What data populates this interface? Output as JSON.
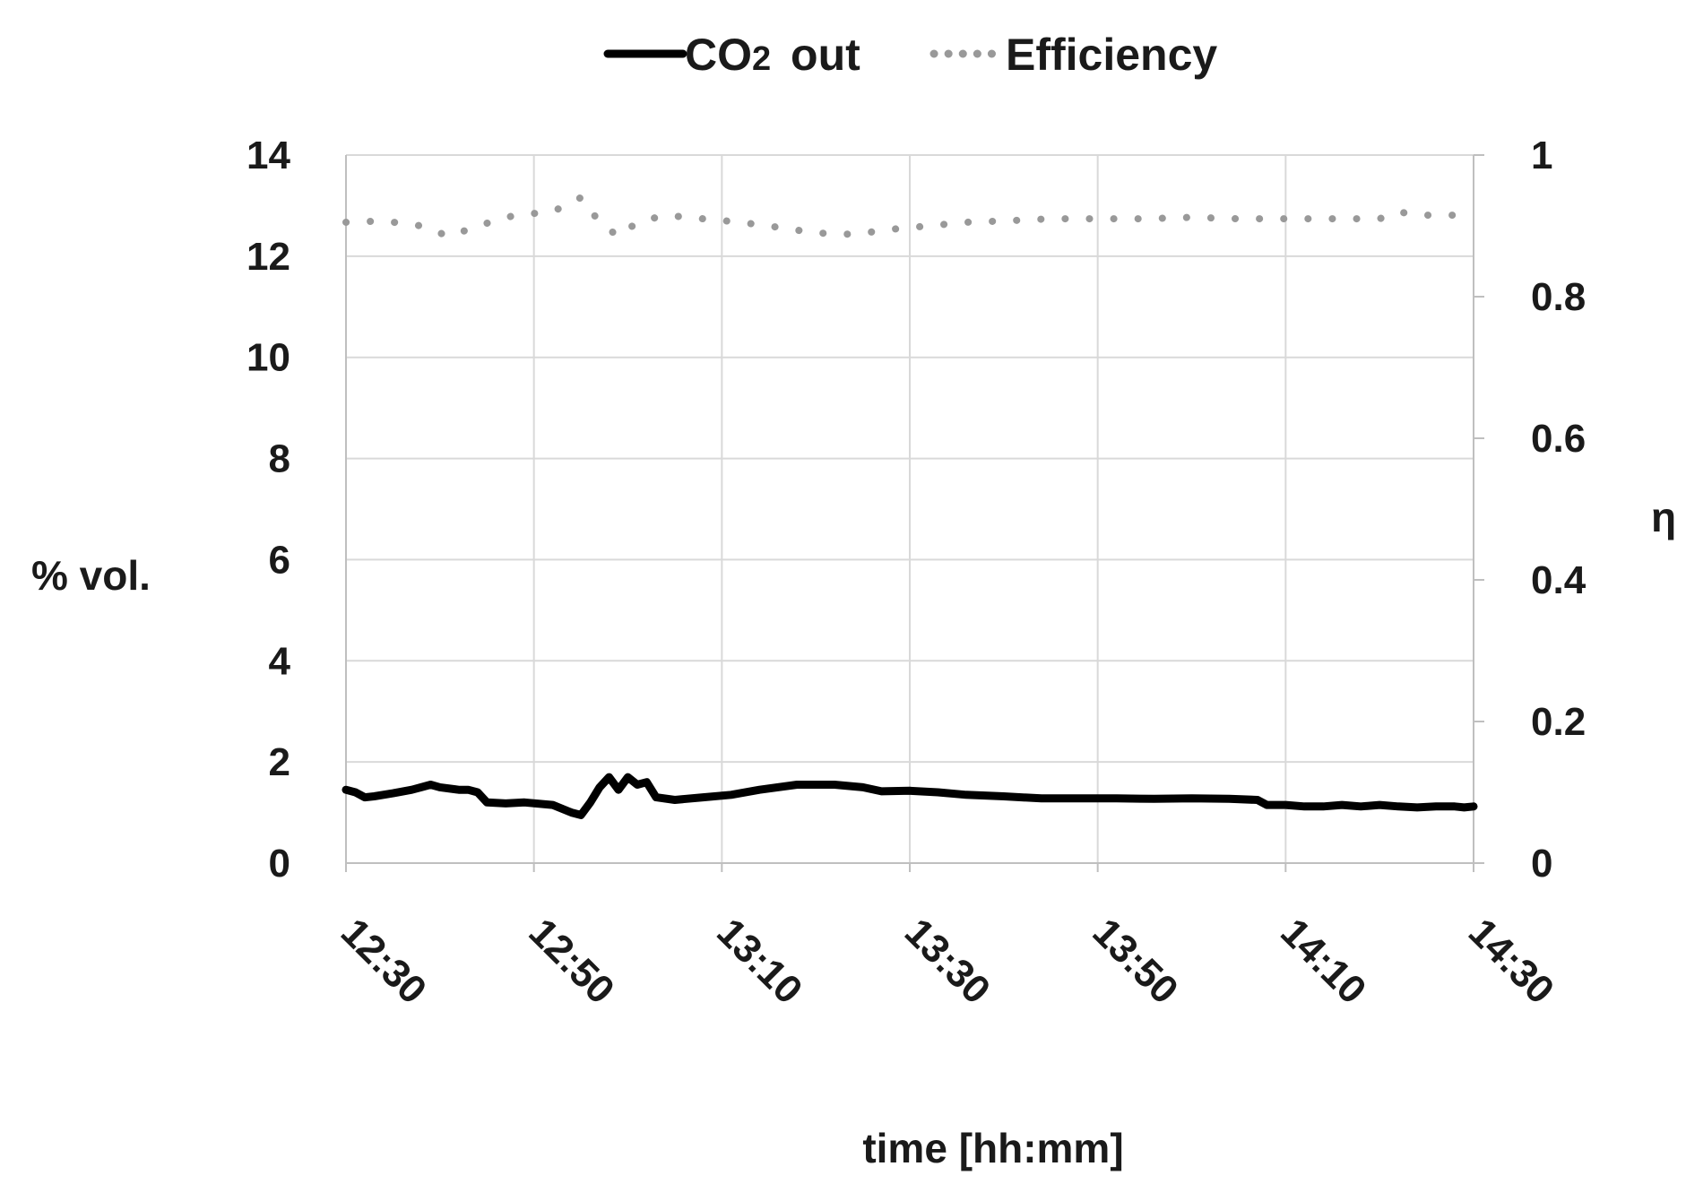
{
  "chart_data": {
    "type": "line",
    "x_labels": [
      "12:30",
      "12:50",
      "13:10",
      "13:30",
      "13:50",
      "14:10",
      "14:30"
    ],
    "xlabel": "time [hh:mm]",
    "ylabel_left": "% vol.",
    "ylabel_right": "η",
    "ylim_left": [
      0,
      14
    ],
    "yticks_left": [
      "0",
      "2",
      "4",
      "6",
      "8",
      "10",
      "12",
      "14"
    ],
    "ylim_right": [
      0,
      1
    ],
    "yticks_right": [
      "0",
      "0.2",
      "0.4",
      "0.6",
      "0.8",
      "1"
    ],
    "grid": true,
    "legend_position": "top-center",
    "legend": {
      "co2_prefix": "CO",
      "co2_sub": "2",
      "co2_suffix": " out",
      "efficiency": "Efficiency"
    },
    "series": [
      {
        "name": "CO2 out",
        "axis": "left",
        "style": "solid",
        "color": "#000000",
        "points": [
          [
            0,
            1.45
          ],
          [
            1,
            1.4
          ],
          [
            2,
            1.3
          ],
          [
            3,
            1.32
          ],
          [
            5,
            1.38
          ],
          [
            7,
            1.45
          ],
          [
            8,
            1.5
          ],
          [
            9,
            1.55
          ],
          [
            10,
            1.5
          ],
          [
            12,
            1.45
          ],
          [
            13,
            1.45
          ],
          [
            14,
            1.4
          ],
          [
            15,
            1.2
          ],
          [
            17,
            1.18
          ],
          [
            19,
            1.2
          ],
          [
            22,
            1.15
          ],
          [
            24,
            1.0
          ],
          [
            25,
            0.95
          ],
          [
            26,
            1.2
          ],
          [
            27,
            1.5
          ],
          [
            28,
            1.7
          ],
          [
            29,
            1.45
          ],
          [
            30,
            1.7
          ],
          [
            31,
            1.55
          ],
          [
            32,
            1.6
          ],
          [
            33,
            1.3
          ],
          [
            35,
            1.25
          ],
          [
            38,
            1.3
          ],
          [
            41,
            1.35
          ],
          [
            44,
            1.45
          ],
          [
            48,
            1.55
          ],
          [
            52,
            1.55
          ],
          [
            55,
            1.5
          ],
          [
            57,
            1.42
          ],
          [
            60,
            1.43
          ],
          [
            63,
            1.4
          ],
          [
            66,
            1.35
          ],
          [
            70,
            1.32
          ],
          [
            74,
            1.28
          ],
          [
            78,
            1.28
          ],
          [
            82,
            1.28
          ],
          [
            86,
            1.27
          ],
          [
            90,
            1.28
          ],
          [
            94,
            1.27
          ],
          [
            97,
            1.25
          ],
          [
            98,
            1.15
          ],
          [
            100,
            1.15
          ],
          [
            102,
            1.12
          ],
          [
            104,
            1.12
          ],
          [
            106,
            1.15
          ],
          [
            108,
            1.12
          ],
          [
            110,
            1.15
          ],
          [
            112,
            1.12
          ],
          [
            114,
            1.1
          ],
          [
            116,
            1.12
          ],
          [
            118,
            1.12
          ],
          [
            119,
            1.1
          ],
          [
            120,
            1.12
          ]
        ]
      },
      {
        "name": "Efficiency",
        "axis": "right",
        "style": "dotted",
        "color": "#999999",
        "points": [
          [
            0,
            0.905
          ],
          [
            4,
            0.907
          ],
          [
            8,
            0.9
          ],
          [
            11,
            0.885
          ],
          [
            14,
            0.9
          ],
          [
            18,
            0.915
          ],
          [
            22,
            0.92
          ],
          [
            25,
            0.94
          ],
          [
            27,
            0.905
          ],
          [
            29,
            0.885
          ],
          [
            31,
            0.905
          ],
          [
            34,
            0.915
          ],
          [
            38,
            0.91
          ],
          [
            42,
            0.905
          ],
          [
            46,
            0.898
          ],
          [
            50,
            0.89
          ],
          [
            54,
            0.888
          ],
          [
            58,
            0.895
          ],
          [
            62,
            0.9
          ],
          [
            66,
            0.905
          ],
          [
            70,
            0.907
          ],
          [
            75,
            0.91
          ],
          [
            80,
            0.91
          ],
          [
            85,
            0.91
          ],
          [
            90,
            0.912
          ],
          [
            95,
            0.91
          ],
          [
            100,
            0.91
          ],
          [
            105,
            0.91
          ],
          [
            110,
            0.91
          ],
          [
            112,
            0.92
          ],
          [
            114,
            0.915
          ],
          [
            118,
            0.915
          ],
          [
            120,
            0.915
          ]
        ]
      }
    ]
  }
}
